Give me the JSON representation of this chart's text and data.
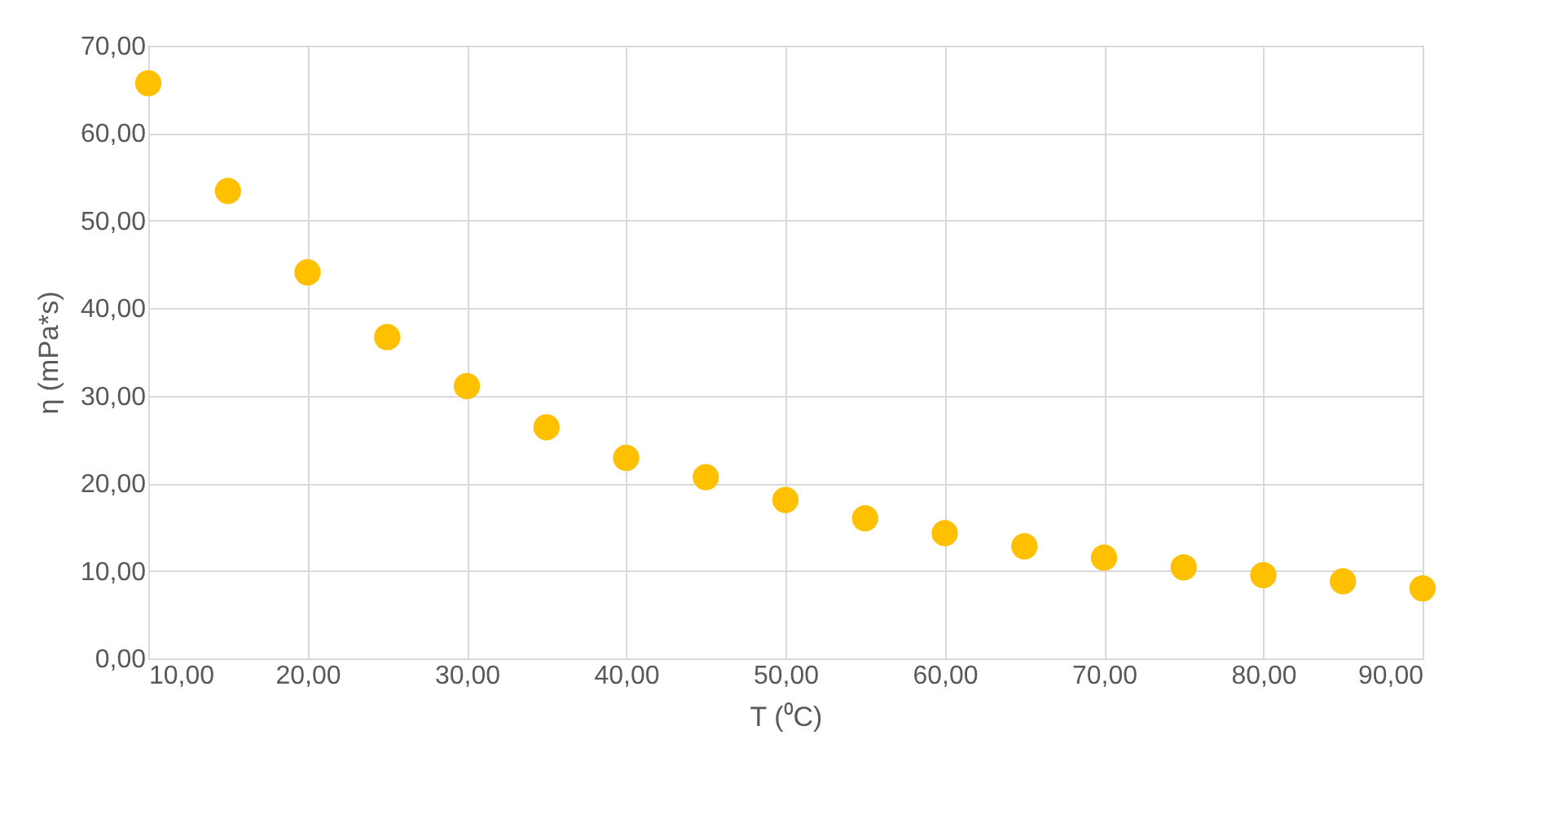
{
  "chart_data": {
    "type": "scatter",
    "xlabel": "T (⁰C)",
    "ylabel": "η (mPa*s)",
    "x": [
      10,
      15,
      20,
      25,
      30,
      35,
      40,
      45,
      50,
      55,
      60,
      65,
      70,
      75,
      80,
      85,
      90
    ],
    "series": [
      {
        "color": "#ffc000",
        "values": [
          65.7,
          53.4,
          44.1,
          36.7,
          31.1,
          26.4,
          22.9,
          20.7,
          18.1,
          16.0,
          14.3,
          12.8,
          11.5,
          10.4,
          9.5,
          8.8,
          8.0
        ]
      }
    ],
    "xlim": [
      10,
      90
    ],
    "ylim": [
      0,
      70
    ],
    "xticks": [
      {
        "value": 10,
        "label": "10,00"
      },
      {
        "value": 20,
        "label": "20,00"
      },
      {
        "value": 30,
        "label": "30,00"
      },
      {
        "value": 40,
        "label": "40,00"
      },
      {
        "value": 50,
        "label": "50,00"
      },
      {
        "value": 60,
        "label": "60,00"
      },
      {
        "value": 70,
        "label": "70,00"
      },
      {
        "value": 80,
        "label": "80,00"
      },
      {
        "value": 90,
        "label": "90,00"
      }
    ],
    "yticks": [
      {
        "value": 0,
        "label": "0,00"
      },
      {
        "value": 10,
        "label": "10,00"
      },
      {
        "value": 20,
        "label": "20,00"
      },
      {
        "value": 30,
        "label": "30,00"
      },
      {
        "value": 40,
        "label": "40,00"
      },
      {
        "value": 50,
        "label": "50,00"
      },
      {
        "value": 60,
        "label": "60,00"
      },
      {
        "value": 70,
        "label": "70,00"
      }
    ],
    "grid": true,
    "marker": "circle"
  }
}
